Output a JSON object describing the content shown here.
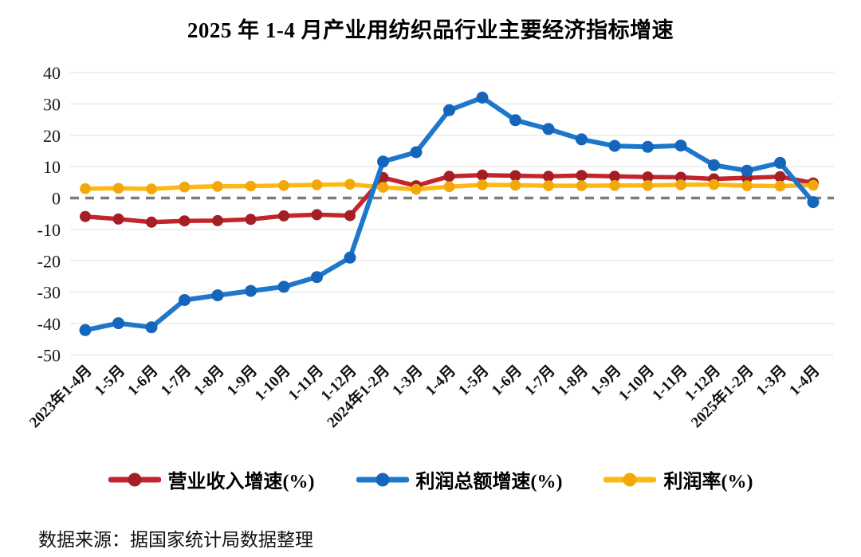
{
  "chart_data": {
    "type": "line",
    "title": "2025 年 1-4 月产业用纺织品行业主要经济指标增速",
    "source_note": "数据来源：据国家统计局数据整理",
    "categories": [
      "2023年1-4月",
      "1-5月",
      "1-6月",
      "1-7月",
      "1-8月",
      "1-9月",
      "1-10月",
      "1-11月",
      "1-12月",
      "2024年1-2月",
      "1-3月",
      "1-4月",
      "1-5月",
      "1-6月",
      "1-7月",
      "1-8月",
      "1-9月",
      "1-10月",
      "1-11月",
      "1-12月",
      "2025年1-2月",
      "1-3月",
      "1-4月"
    ],
    "series": [
      {
        "id": "revenue-growth",
        "name": "营业收入增速(%)",
        "color": "#c2262c",
        "marker_color": "#a51e24",
        "values": [
          -5.9,
          -6.7,
          -7.7,
          -7.3,
          -7.2,
          -6.8,
          -5.7,
          -5.3,
          -5.6,
          6.5,
          3.9,
          6.9,
          7.3,
          7.1,
          6.9,
          7.2,
          6.9,
          6.7,
          6.6,
          6.1,
          6.4,
          6.8,
          4.8
        ]
      },
      {
        "id": "profit-growth",
        "name": "利润总额增速(%)",
        "color": "#1d78cc",
        "marker_color": "#1566bb",
        "values": [
          -42.1,
          -39.9,
          -41.2,
          -32.5,
          -31.0,
          -29.6,
          -28.3,
          -25.2,
          -19.0,
          11.6,
          14.6,
          28.0,
          32.0,
          24.8,
          22.0,
          18.7,
          16.6,
          16.3,
          16.7,
          10.5,
          8.7,
          11.2,
          -1.3
        ]
      },
      {
        "id": "profit-margin",
        "name": "利润率(%)",
        "color": "#fdb813",
        "marker_color": "#f2a70a",
        "values": [
          3.0,
          3.1,
          2.9,
          3.5,
          3.7,
          3.8,
          4.0,
          4.2,
          4.4,
          3.4,
          2.8,
          3.6,
          4.2,
          4.1,
          3.9,
          3.9,
          4.0,
          4.0,
          4.2,
          4.3,
          3.9,
          3.8,
          4.1
        ]
      }
    ],
    "ylim": [
      -50,
      40
    ],
    "ytick_step": 10,
    "ytick_labels": [
      "40",
      "30",
      "20",
      "10",
      "0",
      "-10",
      "-20",
      "-30",
      "-40",
      "-50"
    ],
    "grid": true,
    "grid_color": "#eaeaea",
    "zero_line": {
      "style": "dashed",
      "color": "#7c7c7c"
    },
    "legend_position": "bottom",
    "xlabel": "",
    "ylabel": ""
  }
}
